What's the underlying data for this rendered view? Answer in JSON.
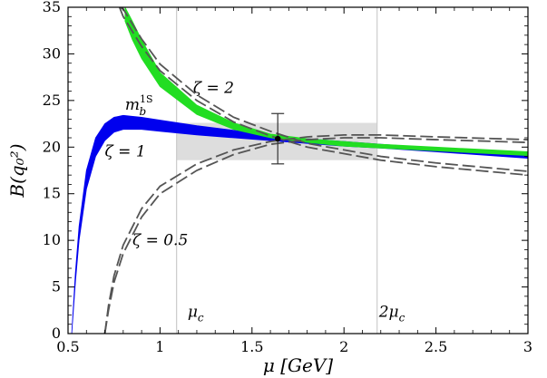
{
  "chart_data": {
    "type": "line",
    "title": "",
    "xlabel": "μ [GeV]",
    "ylabel": "B(q₀²)",
    "xlim": [
      0.5,
      3.0
    ],
    "ylim": [
      0,
      35
    ],
    "xticks": [
      "0.5",
      "1",
      "1.5",
      "2",
      "2.5",
      "3"
    ],
    "yticks": [
      "0",
      "5",
      "10",
      "15",
      "20",
      "25",
      "30",
      "35"
    ],
    "grid": false,
    "legend": "none",
    "colors": {
      "blue_band": "#0000ee",
      "green_band": "#22dd22",
      "dashed": "#555555",
      "shaded_box": "#dddddd",
      "vline": "#cccccc"
    },
    "reference_lines": [
      {
        "x": 1.09,
        "label": "μc"
      },
      {
        "x": 2.18,
        "label": "2μc"
      }
    ],
    "shaded_region": {
      "x": [
        1.09,
        2.18
      ],
      "y": [
        18.6,
        22.6
      ]
    },
    "error_bar": {
      "x": 1.64,
      "y": 20.9,
      "ylow": 18.2,
      "yhigh": 23.6
    },
    "series": [
      {
        "label": "ζ = 1",
        "style": "band",
        "x": [
          0.52,
          0.54,
          0.56,
          0.6,
          0.65,
          0.7,
          0.75,
          0.8,
          0.9,
          1.0,
          1.2,
          1.4,
          1.6,
          1.8,
          2.0,
          2.2,
          2.5,
          3.0
        ],
        "lower": [
          0.0,
          5.5,
          10.0,
          15.5,
          19.0,
          20.7,
          21.6,
          21.9,
          21.9,
          21.7,
          21.3,
          21.0,
          20.7,
          20.4,
          20.1,
          19.9,
          19.5,
          18.8
        ],
        "upper": [
          0.0,
          6.5,
          11.5,
          17.5,
          21.0,
          22.5,
          23.2,
          23.4,
          23.2,
          22.9,
          22.3,
          21.8,
          21.3,
          20.9,
          20.6,
          20.3,
          19.9,
          19.3
        ]
      },
      {
        "label": "mb1S",
        "style": "band",
        "x": [
          0.81,
          0.85,
          0.9,
          1.0,
          1.2,
          1.4,
          1.6,
          1.8,
          2.0,
          2.2,
          2.5,
          3.0
        ],
        "lower": [
          33.5,
          31.5,
          29.5,
          26.5,
          23.5,
          21.9,
          21.0,
          20.5,
          20.1,
          19.9,
          19.6,
          19.1
        ],
        "upper": [
          35.0,
          33.5,
          31.5,
          28.0,
          24.5,
          22.6,
          21.4,
          20.9,
          20.6,
          20.3,
          20.0,
          19.5
        ]
      },
      {
        "label": "ζ = 2",
        "style": "dashed-pair",
        "x": [
          0.78,
          0.8,
          0.9,
          1.0,
          1.2,
          1.4,
          1.6,
          1.8,
          2.0,
          2.2,
          2.5,
          3.0
        ],
        "line1": [
          35.0,
          34.0,
          30.8,
          28.2,
          25.0,
          22.7,
          21.2,
          20.0,
          19.3,
          18.6,
          17.9,
          17.0
        ],
        "line2": [
          35.0,
          34.8,
          31.6,
          28.9,
          25.6,
          23.2,
          21.7,
          20.4,
          19.7,
          19.0,
          18.3,
          17.4
        ]
      },
      {
        "label": "ζ = 0.5",
        "style": "dashed-pair",
        "x": [
          0.7,
          0.72,
          0.75,
          0.8,
          0.9,
          1.0,
          1.2,
          1.4,
          1.6,
          1.8,
          2.0,
          2.2,
          2.5,
          3.0
        ],
        "line1": [
          0.0,
          2.5,
          5.5,
          8.6,
          12.5,
          15.0,
          17.5,
          19.2,
          20.3,
          20.8,
          21.0,
          21.0,
          20.8,
          20.5
        ],
        "line2": [
          0.0,
          3.0,
          6.2,
          9.5,
          13.4,
          15.8,
          18.2,
          19.7,
          20.6,
          21.1,
          21.3,
          21.3,
          21.1,
          20.8
        ]
      }
    ],
    "annotations": [
      {
        "id": "zeta2",
        "text": "ζ = 2",
        "x": 1.18,
        "y": 25.8
      },
      {
        "id": "zeta1",
        "text": "ζ = 1",
        "x": 0.7,
        "y": 19.0
      },
      {
        "id": "zeta05",
        "text": "ζ = 0.5",
        "x": 0.85,
        "y": 9.5
      },
      {
        "id": "mb1s",
        "text": "m",
        "sub": "b",
        "sup": "1S",
        "x": 0.81,
        "y": 24.0
      },
      {
        "id": "muc",
        "text": "μ",
        "sub": "c",
        "x": 1.15,
        "y": 1.8
      },
      {
        "id": "twomuc",
        "text": "2μ",
        "sub": "c",
        "x": 2.19,
        "y": 1.8
      }
    ]
  }
}
